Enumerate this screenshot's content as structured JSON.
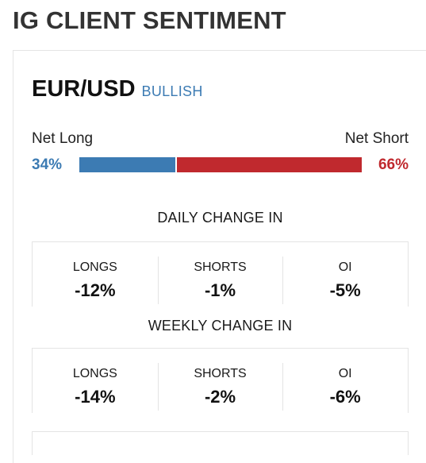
{
  "header": {
    "title": "IG CLIENT SENTIMENT"
  },
  "instrument": {
    "pair": "EUR/USD",
    "signal": "BULLISH"
  },
  "sentiment": {
    "long_label": "Net Long",
    "short_label": "Net Short",
    "long_pct_text": "34%",
    "short_pct_text": "66%",
    "long_pct": 34,
    "short_pct": 66
  },
  "daily": {
    "title": "DAILY CHANGE IN",
    "stats": [
      {
        "label": "LONGS",
        "value": "-12%"
      },
      {
        "label": "SHORTS",
        "value": "-1%"
      },
      {
        "label": "OI",
        "value": "-5%"
      }
    ]
  },
  "weekly": {
    "title": "WEEKLY CHANGE IN",
    "stats": [
      {
        "label": "LONGS",
        "value": "-14%"
      },
      {
        "label": "SHORTS",
        "value": "-2%"
      },
      {
        "label": "OI",
        "value": "-6%"
      }
    ]
  },
  "colors": {
    "long": "#3c7bb3",
    "short": "#c0292e",
    "signal": "#3c7bb3"
  }
}
